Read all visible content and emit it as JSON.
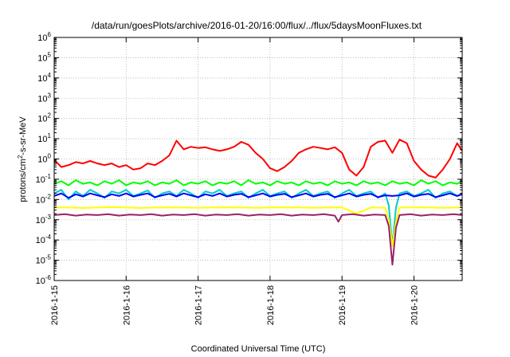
{
  "chart_data": {
    "type": "line",
    "title": "/data/run/goesPlots/archive/2016-01-20/16:00/flux/../flux/5daysMoonFluxes.txt",
    "xlabel": "Coordinated Universal Time (UTC)",
    "ylabel": "protons/cm2-s-sr-MeV",
    "ylabel_parts": {
      "pre": "protons/cm",
      "sup": "2",
      "post": "-s-sr-MeV"
    },
    "yscale": "log",
    "ylim_exp": [
      -6,
      6
    ],
    "y_tick_labels": [
      {
        "base": "10",
        "exp": "-6"
      },
      {
        "base": "10",
        "exp": "-5"
      },
      {
        "base": "10",
        "exp": "-4"
      },
      {
        "base": "10",
        "exp": "-3"
      },
      {
        "base": "10",
        "exp": "-2"
      },
      {
        "base": "10",
        "exp": "-1"
      },
      {
        "base": "10",
        "exp": "0"
      },
      {
        "base": "10",
        "exp": "1"
      },
      {
        "base": "10",
        "exp": "2"
      },
      {
        "base": "10",
        "exp": "3"
      },
      {
        "base": "10",
        "exp": "4"
      },
      {
        "base": "10",
        "exp": "5"
      },
      {
        "base": "10",
        "exp": "6"
      }
    ],
    "x_tick_labels": [
      "2016-1-15",
      "2016-1-16",
      "2016-1-17",
      "2016-1-18",
      "2016-1-19",
      "2016-1-20"
    ],
    "x_tick_days": [
      15,
      16,
      17,
      18,
      19,
      20
    ],
    "xlim_days": [
      15.0,
      20.67
    ],
    "grid": true,
    "series": [
      {
        "color": "#ff0000",
        "x": [
          15.0,
          15.1,
          15.2,
          15.3,
          15.4,
          15.5,
          15.6,
          15.7,
          15.8,
          15.9,
          16.0,
          16.1,
          16.2,
          16.3,
          16.4,
          16.5,
          16.6,
          16.7,
          16.8,
          16.9,
          17.0,
          17.1,
          17.2,
          17.3,
          17.4,
          17.5,
          17.6,
          17.7,
          17.8,
          17.9,
          18.0,
          18.1,
          18.2,
          18.3,
          18.4,
          18.5,
          18.6,
          18.7,
          18.8,
          18.9,
          19.0,
          19.1,
          19.2,
          19.3,
          19.4,
          19.5,
          19.6,
          19.7,
          19.8,
          19.9,
          20.0,
          20.1,
          20.2,
          20.3,
          20.4,
          20.5,
          20.6,
          20.67
        ],
        "y": [
          0.9,
          0.4,
          0.5,
          0.7,
          0.6,
          0.8,
          0.6,
          0.5,
          0.6,
          0.4,
          0.5,
          0.3,
          0.35,
          0.6,
          0.5,
          0.8,
          1.5,
          8.0,
          3.0,
          4.0,
          3.5,
          3.8,
          3.0,
          2.5,
          3.0,
          4.0,
          7.0,
          5.0,
          2.0,
          1.0,
          0.35,
          0.25,
          0.4,
          0.8,
          2.0,
          3.0,
          4.0,
          3.5,
          3.0,
          3.8,
          2.0,
          0.3,
          0.15,
          0.4,
          4.0,
          7.0,
          8.0,
          2.0,
          9.0,
          6.0,
          0.8,
          0.3,
          0.15,
          0.12,
          0.3,
          1.0,
          6.0,
          2.5
        ]
      },
      {
        "color": "#00ff00",
        "x": [
          15.0,
          15.1,
          15.2,
          15.3,
          15.4,
          15.5,
          15.6,
          15.7,
          15.8,
          15.9,
          16.0,
          16.1,
          16.2,
          16.3,
          16.4,
          16.5,
          16.6,
          16.7,
          16.8,
          16.9,
          17.0,
          17.1,
          17.2,
          17.3,
          17.4,
          17.5,
          17.6,
          17.7,
          17.8,
          17.9,
          18.0,
          18.1,
          18.2,
          18.3,
          18.4,
          18.5,
          18.6,
          18.7,
          18.8,
          18.9,
          19.0,
          19.1,
          19.2,
          19.3,
          19.4,
          19.5,
          19.6,
          19.7,
          19.8,
          19.9,
          20.0,
          20.1,
          20.2,
          20.3,
          20.4,
          20.5,
          20.6,
          20.67
        ],
        "y": [
          0.06,
          0.08,
          0.05,
          0.09,
          0.06,
          0.07,
          0.05,
          0.08,
          0.06,
          0.09,
          0.05,
          0.07,
          0.06,
          0.08,
          0.05,
          0.07,
          0.06,
          0.09,
          0.05,
          0.07,
          0.06,
          0.08,
          0.05,
          0.07,
          0.06,
          0.08,
          0.05,
          0.09,
          0.06,
          0.07,
          0.05,
          0.08,
          0.06,
          0.07,
          0.05,
          0.08,
          0.06,
          0.07,
          0.05,
          0.08,
          0.06,
          0.07,
          0.05,
          0.08,
          0.06,
          0.07,
          0.05,
          0.08,
          0.06,
          0.07,
          0.05,
          0.09,
          0.06,
          0.08,
          0.05,
          0.07,
          0.06,
          0.08
        ]
      },
      {
        "color": "#00cccc",
        "x": [
          15.0,
          15.1,
          15.2,
          15.3,
          15.4,
          15.5,
          15.6,
          15.7,
          15.8,
          15.9,
          16.0,
          16.1,
          16.2,
          16.3,
          16.4,
          16.5,
          16.6,
          16.7,
          16.8,
          16.9,
          17.0,
          17.1,
          17.2,
          17.3,
          17.4,
          17.5,
          17.6,
          17.7,
          17.8,
          17.9,
          18.0,
          18.1,
          18.2,
          18.3,
          18.4,
          18.5,
          18.6,
          18.7,
          18.8,
          18.9,
          19.0,
          19.1,
          19.2,
          19.3,
          19.4,
          19.5,
          19.6,
          19.65,
          19.7,
          19.75,
          19.8,
          19.9,
          20.0,
          20.1,
          20.2,
          20.3,
          20.4,
          20.5,
          20.6,
          20.67
        ],
        "y": [
          0.02,
          0.03,
          0.01,
          0.025,
          0.015,
          0.03,
          0.02,
          0.012,
          0.025,
          0.02,
          0.03,
          0.015,
          0.02,
          0.028,
          0.012,
          0.02,
          0.025,
          0.015,
          0.03,
          0.02,
          0.012,
          0.025,
          0.02,
          0.03,
          0.015,
          0.02,
          0.025,
          0.012,
          0.02,
          0.03,
          0.015,
          0.02,
          0.025,
          0.012,
          0.02,
          0.03,
          0.015,
          0.02,
          0.025,
          0.012,
          0.02,
          0.03,
          0.015,
          0.02,
          0.025,
          0.012,
          0.02,
          0.005,
          5e-05,
          0.004,
          0.02,
          0.025,
          0.015,
          0.02,
          0.03,
          0.012,
          0.02,
          0.025,
          0.015,
          0.02
        ]
      },
      {
        "color": "#0000ff",
        "x": [
          15.0,
          15.1,
          15.2,
          15.3,
          15.4,
          15.5,
          15.6,
          15.7,
          15.8,
          15.9,
          16.0,
          16.1,
          16.2,
          16.3,
          16.4,
          16.5,
          16.6,
          16.7,
          16.8,
          16.9,
          17.0,
          17.1,
          17.2,
          17.3,
          17.4,
          17.5,
          17.6,
          17.7,
          17.8,
          17.9,
          18.0,
          18.1,
          18.2,
          18.3,
          18.4,
          18.5,
          18.6,
          18.7,
          18.8,
          18.9,
          19.0,
          19.1,
          19.2,
          19.3,
          19.4,
          19.5,
          19.6,
          19.7,
          19.8,
          19.9,
          20.0,
          20.1,
          20.2,
          20.3,
          20.4,
          20.5,
          20.6,
          20.67
        ],
        "y": [
          0.015,
          0.02,
          0.012,
          0.018,
          0.014,
          0.02,
          0.016,
          0.013,
          0.018,
          0.015,
          0.02,
          0.014,
          0.017,
          0.02,
          0.013,
          0.016,
          0.019,
          0.014,
          0.02,
          0.016,
          0.013,
          0.018,
          0.015,
          0.02,
          0.014,
          0.017,
          0.019,
          0.013,
          0.016,
          0.02,
          0.014,
          0.017,
          0.019,
          0.013,
          0.016,
          0.02,
          0.014,
          0.017,
          0.019,
          0.013,
          0.016,
          0.02,
          0.014,
          0.017,
          0.019,
          0.013,
          0.016,
          0.015,
          0.016,
          0.02,
          0.014,
          0.017,
          0.019,
          0.013,
          0.016,
          0.02,
          0.015,
          0.018
        ]
      },
      {
        "color": "#ffff00",
        "x": [
          15.0,
          15.2,
          15.4,
          15.6,
          15.8,
          16.0,
          16.2,
          16.4,
          16.6,
          16.8,
          17.0,
          17.2,
          17.4,
          17.6,
          17.8,
          18.0,
          18.2,
          18.4,
          18.6,
          18.8,
          19.0,
          19.2,
          19.4,
          19.6,
          19.65,
          19.7,
          19.75,
          19.8,
          20.0,
          20.2,
          20.4,
          20.6,
          20.67
        ],
        "y": [
          0.004,
          0.004,
          0.0038,
          0.004,
          0.0042,
          0.004,
          0.0038,
          0.004,
          0.0041,
          0.004,
          0.0039,
          0.004,
          0.0041,
          0.004,
          0.0039,
          0.004,
          0.0041,
          0.004,
          0.0039,
          0.004,
          0.0041,
          0.002,
          0.004,
          0.0039,
          0.001,
          5e-05,
          0.0008,
          0.004,
          0.0041,
          0.004,
          0.0039,
          0.004,
          0.004
        ]
      },
      {
        "color": "#992266",
        "x": [
          15.0,
          15.15,
          15.3,
          15.45,
          15.6,
          15.75,
          15.9,
          16.05,
          16.2,
          16.35,
          16.5,
          16.65,
          16.8,
          16.95,
          17.1,
          17.25,
          17.4,
          17.55,
          17.7,
          17.85,
          18.0,
          18.15,
          18.3,
          18.45,
          18.6,
          18.75,
          18.9,
          18.95,
          19.0,
          19.15,
          19.3,
          19.45,
          19.6,
          19.65,
          19.7,
          19.75,
          19.8,
          19.95,
          20.1,
          20.25,
          20.4,
          20.55,
          20.67
        ],
        "y": [
          0.0017,
          0.0019,
          0.0016,
          0.0018,
          0.0017,
          0.0019,
          0.0016,
          0.0018,
          0.0017,
          0.0019,
          0.0016,
          0.0018,
          0.0017,
          0.0019,
          0.0016,
          0.0018,
          0.0017,
          0.0019,
          0.0016,
          0.0018,
          0.0017,
          0.0019,
          0.0016,
          0.0018,
          0.0017,
          0.0019,
          0.0016,
          0.0008,
          0.0017,
          0.0019,
          0.0016,
          0.0018,
          0.0017,
          0.0005,
          6e-06,
          0.0004,
          0.0017,
          0.0019,
          0.0016,
          0.0018,
          0.0017,
          0.0019,
          0.0017
        ]
      }
    ]
  }
}
